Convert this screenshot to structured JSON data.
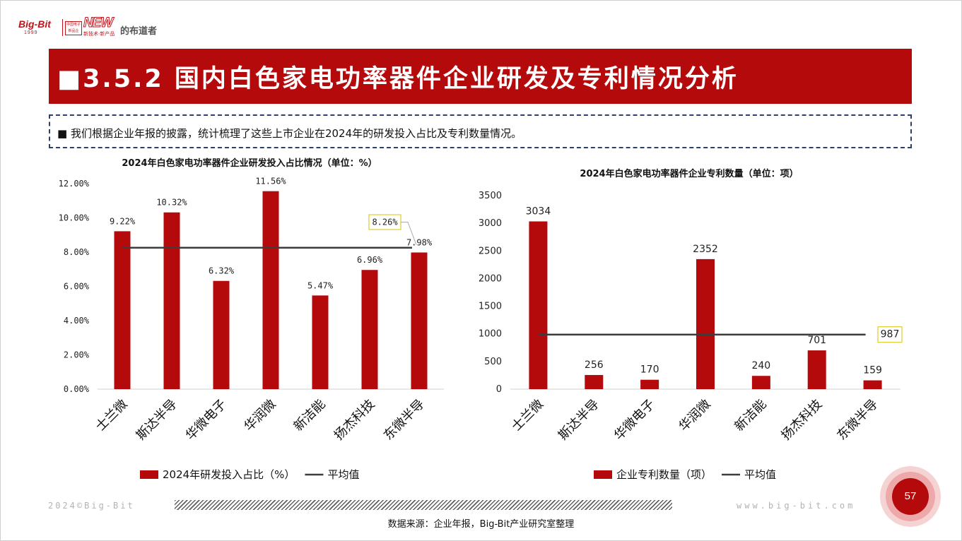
{
  "logo": {
    "brand": "Big-Bit",
    "year": "1999",
    "badge": "中国电子 新品企",
    "new": "NEW",
    "slogan": "新技术·新产品",
    "name": "的布道者"
  },
  "banner": {
    "title": "■3.5.2 国内白色家电功率器件企业研发及专利情况分析"
  },
  "note": {
    "text": "■ 我们根据企业年报的披露，统计梳理了这些上市企业在2024年的研发投入占比及专利数量情况。"
  },
  "colors": {
    "bar": "#b50a0c",
    "avg_line": "#3c3c3c",
    "callout_border": "#d8c200",
    "banner": "#b50a0c"
  },
  "chart_data": [
    {
      "type": "bar",
      "title": "2024年白色家电功率器件企业研发投入占比情况（单位：%）",
      "categories": [
        "士兰微",
        "斯达半导",
        "华微电子",
        "华润微",
        "新洁能",
        "扬杰科技",
        "东微半导"
      ],
      "series": [
        {
          "name": "2024年研发投入占比（%）",
          "values": [
            9.22,
            10.32,
            6.32,
            11.56,
            5.47,
            6.96,
            7.98
          ]
        },
        {
          "name": "平均值",
          "type": "line",
          "values": [
            8.26,
            8.26,
            8.26,
            8.26,
            8.26,
            8.26,
            8.26
          ]
        }
      ],
      "data_labels": [
        "9.22%",
        "10.32%",
        "6.32%",
        "11.56%",
        "5.47%",
        "6.96%",
        "7.98%"
      ],
      "average_label": "8.26%",
      "yticks": [
        "0.00%",
        "2.00%",
        "4.00%",
        "6.00%",
        "8.00%",
        "10.00%",
        "12.00%"
      ],
      "ylim": [
        0,
        12
      ],
      "grid": false,
      "legend_position": "bottom"
    },
    {
      "type": "bar",
      "title": "2024年白色家电功率器件企业专利数量（单位：项）",
      "categories": [
        "士兰微",
        "斯达半导",
        "华微电子",
        "华润微",
        "新洁能",
        "扬杰科技",
        "东微半导"
      ],
      "series": [
        {
          "name": "企业专利数量（项）",
          "values": [
            3034,
            256,
            170,
            2352,
            240,
            701,
            159
          ]
        },
        {
          "name": "平均值",
          "type": "line",
          "values": [
            987,
            987,
            987,
            987,
            987,
            987,
            987
          ]
        }
      ],
      "data_labels": [
        "3034",
        "256",
        "170",
        "2352",
        "240",
        "701",
        "159"
      ],
      "average_label": "987",
      "yticks": [
        "0",
        "500",
        "1000",
        "1500",
        "2000",
        "2500",
        "3000",
        "3500"
      ],
      "ylim": [
        0,
        3500
      ],
      "grid": false,
      "legend_position": "bottom"
    }
  ],
  "footer": {
    "left": "2024©Big-Bit",
    "right": "www.big-bit.com",
    "source": "数据来源：企业年报，Big-Bit产业研究室整理",
    "page": "57"
  }
}
